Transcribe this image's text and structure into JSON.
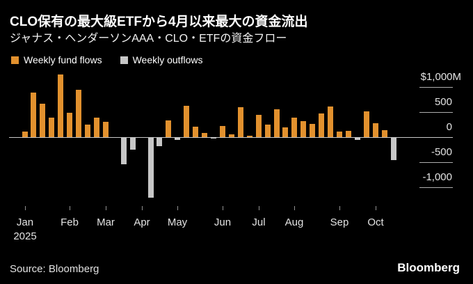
{
  "header": {
    "title": "CLO保有の最大級ETFから4月以来最大の資金流出",
    "subtitle": "ジャナス・ヘンダーソンAAA・CLO・ETFの資金フロー"
  },
  "legend": {
    "items": [
      {
        "name": "inflow",
        "label": "Weekly fund flows",
        "color": "#e2912e"
      },
      {
        "name": "outflow",
        "label": "Weekly outflows",
        "color": "#c7c7c7"
      }
    ]
  },
  "chart_data": {
    "type": "bar",
    "title": "CLO保有の最大級ETFから4月以来最大の資金流出",
    "subtitle": "ジャナス・ヘンダーソンAAA・CLO・ETFの資金フロー",
    "unit": "USD millions, weekly",
    "series_rule": "positive bars = Weekly fund flows (orange), negative bars = Weekly outflows (gray)",
    "values": [
      115,
      890,
      660,
      390,
      1250,
      490,
      940,
      250,
      390,
      300,
      0,
      -540,
      -250,
      0,
      -1215,
      -180,
      330,
      -50,
      620,
      205,
      85,
      -25,
      225,
      50,
      600,
      30,
      440,
      245,
      550,
      200,
      390,
      315,
      270,
      470,
      610,
      110,
      120,
      -60,
      515,
      280,
      140,
      -465
    ],
    "x_axis": {
      "months": [
        "Jan",
        "Feb",
        "Mar",
        "Apr",
        "May",
        "Jun",
        "Jul",
        "Aug",
        "Sep",
        "Oct"
      ],
      "month_start_week_index": [
        0,
        5,
        9,
        13,
        17,
        22,
        26,
        30,
        35,
        39
      ],
      "year_label": "2025"
    },
    "y_axis": {
      "side": "right",
      "ticks": [
        1000,
        500,
        0,
        -500,
        -1000
      ],
      "tick_labels": [
        "$1,000M",
        "500",
        "0",
        "-500",
        "-1,000"
      ],
      "range": [
        -1250,
        1300
      ],
      "grid": "right-stub-lines"
    },
    "colors": {
      "inflow": "#e2912e",
      "outflow": "#c7c7c7",
      "background": "#000000",
      "axis_text": "#e3e3e3",
      "zero_line": "#c9c9c9"
    },
    "legend_position": "top-left"
  },
  "footer": {
    "source": "Source: Bloomberg",
    "brand": "Bloomberg"
  }
}
